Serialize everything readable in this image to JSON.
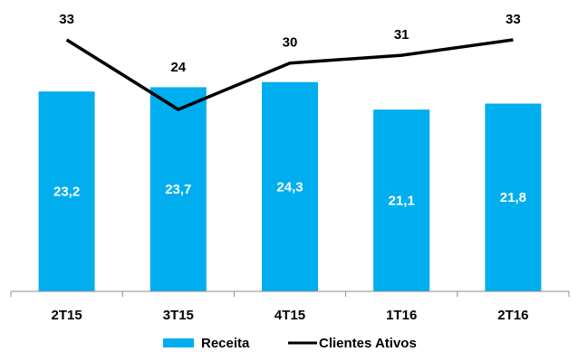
{
  "chart_data": {
    "type": "bar",
    "categories": [
      "2T15",
      "3T15",
      "4T15",
      "1T16",
      "2T16"
    ],
    "series": [
      {
        "name": "Receita",
        "type": "bar",
        "values": [
          23.2,
          23.7,
          24.3,
          21.1,
          21.8
        ],
        "labels": [
          "23,2",
          "23,7",
          "24,3",
          "21,1",
          "21,8"
        ],
        "color": "#00AEEF"
      },
      {
        "name": "Clientes Ativos",
        "type": "line",
        "values": [
          33,
          24,
          30,
          31,
          33
        ],
        "labels": [
          "33",
          "24",
          "30",
          "31",
          "33"
        ],
        "color": "#000000"
      }
    ],
    "title": "",
    "xlabel": "",
    "ylabel": "",
    "grid": false,
    "legend": "bottom"
  }
}
